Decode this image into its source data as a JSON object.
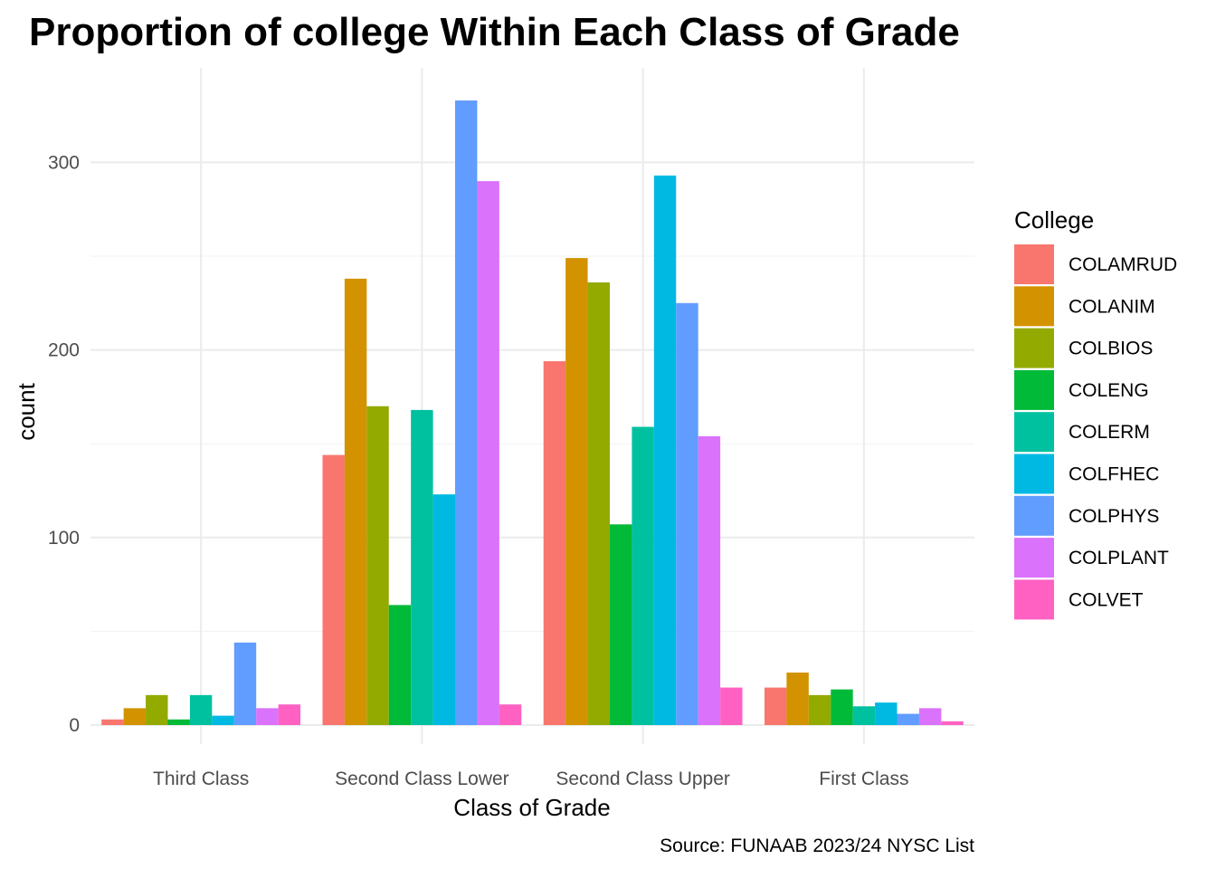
{
  "chart_data": {
    "type": "bar",
    "title": "Proportion of college Within Each Class of Grade",
    "xlabel": "Class of Grade",
    "ylabel": "count",
    "caption": "Source: FUNAAB 2023/24 NYSC List",
    "legend_title": "College",
    "legend_position": "right",
    "grid": true,
    "ylim": [
      0,
      335
    ],
    "yticks": [
      0,
      100,
      200,
      300
    ],
    "categories": [
      "Third Class",
      "Second Class Lower",
      "Second Class Upper",
      "First Class"
    ],
    "series": [
      {
        "name": "COLAMRUD",
        "color": "#F8766D",
        "values": [
          3,
          144,
          194,
          20
        ]
      },
      {
        "name": "COLANIM",
        "color": "#D39200",
        "values": [
          9,
          238,
          249,
          28
        ]
      },
      {
        "name": "COLBIOS",
        "color": "#93AA00",
        "values": [
          16,
          170,
          236,
          16
        ]
      },
      {
        "name": "COLENG",
        "color": "#00BA38",
        "values": [
          3,
          64,
          107,
          19
        ]
      },
      {
        "name": "COLERM",
        "color": "#00C19F",
        "values": [
          16,
          168,
          159,
          10
        ]
      },
      {
        "name": "COLFHEC",
        "color": "#00B9E3",
        "values": [
          5,
          123,
          293,
          12
        ]
      },
      {
        "name": "COLPHYS",
        "color": "#619CFF",
        "values": [
          44,
          333,
          225,
          6
        ]
      },
      {
        "name": "COLPLANT",
        "color": "#DB72FB",
        "values": [
          9,
          290,
          154,
          9
        ]
      },
      {
        "name": "COLVET",
        "color": "#FF61C3",
        "values": [
          11,
          11,
          20,
          2
        ]
      }
    ]
  }
}
